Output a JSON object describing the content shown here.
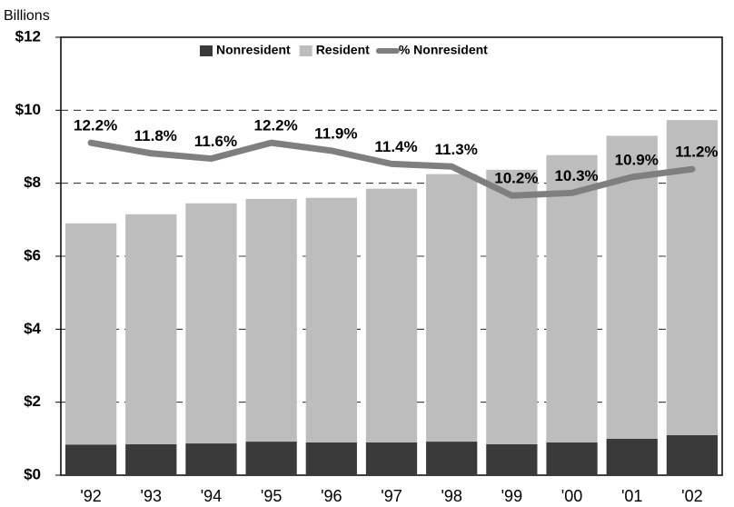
{
  "chart_data": {
    "type": "stacked-bar-line",
    "y_axis_label": "Billions",
    "categories": [
      "'92",
      "'93",
      "'94",
      "'95",
      "'96",
      "'97",
      "'98",
      "'99",
      "'00",
      "'01",
      "'02"
    ],
    "series": [
      {
        "name": "Nonresident",
        "color": "#3a3a3a",
        "values": [
          0.84,
          0.85,
          0.87,
          0.92,
          0.9,
          0.9,
          0.92,
          0.85,
          0.9,
          1.0,
          1.1
        ]
      },
      {
        "name": "Resident",
        "color": "#bdbdbd",
        "values": [
          6.06,
          6.3,
          6.58,
          6.65,
          6.7,
          6.95,
          7.33,
          7.52,
          7.87,
          8.3,
          8.63
        ]
      },
      {
        "name": "% Nonresident",
        "color": "#7f7f7f",
        "axis": "y2",
        "values": [
          12.2,
          11.8,
          11.6,
          12.2,
          11.9,
          11.4,
          11.3,
          10.2,
          10.3,
          10.9,
          11.2
        ],
        "value_labels": [
          "12.2%",
          "11.8%",
          "11.6%",
          "12.2%",
          "11.9%",
          "11.4%",
          "11.3%",
          "10.2%",
          "10.3%",
          "10.9%",
          "11.2%"
        ]
      }
    ],
    "ylim": [
      0,
      12
    ],
    "yticks": [
      {
        "value": 0,
        "label": "$0"
      },
      {
        "value": 2,
        "label": "$2"
      },
      {
        "value": 4,
        "label": "$4"
      },
      {
        "value": 6,
        "label": "$6"
      },
      {
        "value": 8,
        "label": "$8"
      },
      {
        "value": 10,
        "label": "$10"
      },
      {
        "value": 12,
        "label": "$12"
      }
    ],
    "y2lim": [
      -0.4,
      16.2
    ],
    "grid": true
  }
}
